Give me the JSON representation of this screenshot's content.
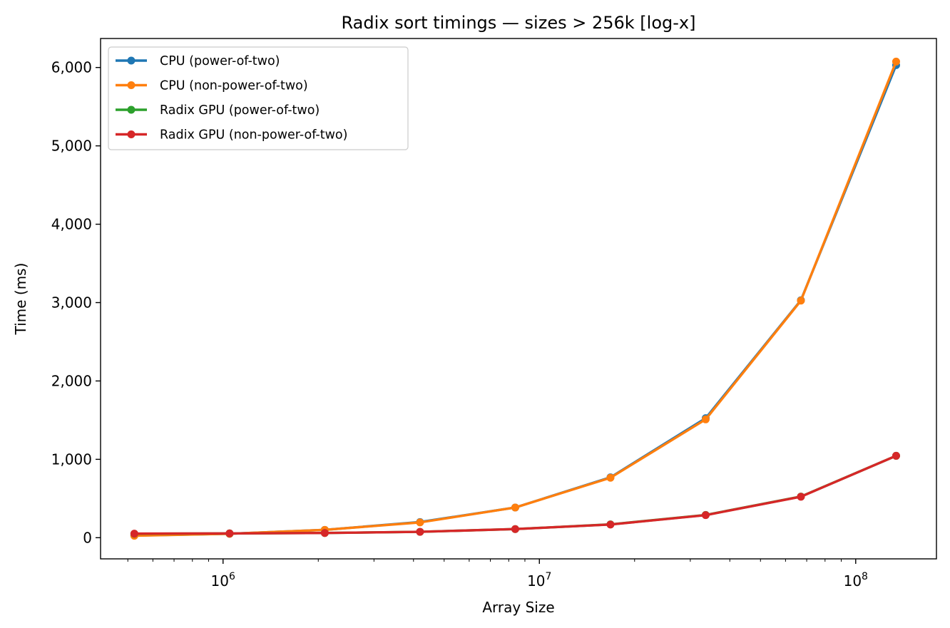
{
  "chart_data": {
    "type": "line",
    "title": "Radix sort timings — sizes > 256k [log-x]",
    "xlabel": "Array Size",
    "ylabel": "Time (ms)",
    "xscale": "log",
    "xlim": [
      410000,
      180000000
    ],
    "ylim": [
      -270,
      6370
    ],
    "x_ticks": [
      {
        "value": 1000000,
        "base": "10",
        "exp": "6"
      },
      {
        "value": 10000000,
        "base": "10",
        "exp": "7"
      },
      {
        "value": 100000000,
        "base": "10",
        "exp": "8"
      }
    ],
    "y_ticks": [
      {
        "value": 0,
        "label": "0"
      },
      {
        "value": 1000,
        "label": "1,000"
      },
      {
        "value": 2000,
        "label": "2,000"
      },
      {
        "value": 3000,
        "label": "3,000"
      },
      {
        "value": 4000,
        "label": "4,000"
      },
      {
        "value": 5000,
        "label": "5,000"
      },
      {
        "value": 6000,
        "label": "6,000"
      }
    ],
    "x": [
      524288,
      1048576,
      2097152,
      4194304,
      8388608,
      16777216,
      33554432,
      67108864,
      134217728
    ],
    "series": [
      {
        "name": "CPU (power-of-two)",
        "color": "#1f77b4",
        "values": [
          28,
          50,
          100,
          200,
          385,
          770,
          1525,
          3030,
          6030
        ]
      },
      {
        "name": "CPU (non-power-of-two)",
        "color": "#ff7f0e",
        "values": [
          25,
          50,
          100,
          195,
          385,
          765,
          1510,
          3025,
          6075
        ]
      },
      {
        "name": "Radix GPU (power-of-two)",
        "color": "#2ca02c",
        "values": [
          50,
          55,
          60,
          75,
          110,
          170,
          290,
          525,
          1045
        ]
      },
      {
        "name": "Radix GPU (non-power-of-two)",
        "color": "#d62728",
        "values": [
          52,
          55,
          60,
          75,
          110,
          168,
          288,
          523,
          1045
        ]
      }
    ],
    "grid": false,
    "legend": "top-left"
  }
}
